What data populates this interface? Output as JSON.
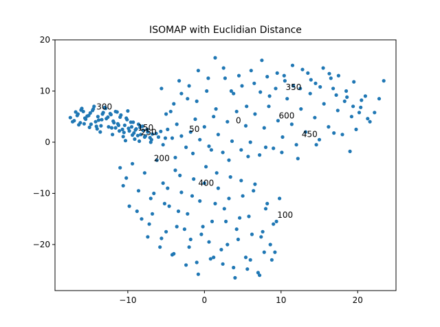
{
  "chart_data": {
    "type": "scatter",
    "title": "ISOMAP with Euclidian Distance",
    "xlabel": "",
    "ylabel": "",
    "xlim": [
      -19.5,
      25
    ],
    "ylim": [
      -29,
      20
    ],
    "xticks": [
      -10,
      0,
      10,
      20
    ],
    "xtick_labels": [
      "−10",
      "0",
      "10",
      "20"
    ],
    "yticks": [
      -20,
      -10,
      0,
      10,
      20
    ],
    "ytick_labels": [
      "−20",
      "−10",
      "0",
      "10",
      "20"
    ],
    "grid": false,
    "marker_color": "#1f77b4",
    "annotations": [
      {
        "text": "0",
        "x": 4.1,
        "y": 3.7
      },
      {
        "text": "50",
        "x": -2.0,
        "y": 2.0
      },
      {
        "text": "100",
        "x": 9.5,
        "y": -14.8
      },
      {
        "text": "150",
        "x": -8.7,
        "y": 2.3
      },
      {
        "text": "200",
        "x": -6.6,
        "y": -3.7
      },
      {
        "text": "250",
        "x": -8.3,
        "y": 1.4
      },
      {
        "text": "300",
        "x": -14.1,
        "y": 6.4
      },
      {
        "text": "350",
        "x": 10.6,
        "y": 10.2
      },
      {
        "text": "400",
        "x": -0.8,
        "y": -8.5
      },
      {
        "text": "450",
        "x": 12.7,
        "y": 1.0
      },
      {
        "text": "600",
        "x": 9.7,
        "y": 4.6
      }
    ],
    "series": [
      {
        "x": [
          -17.5,
          -17.0,
          -16.5,
          -16.2,
          -15.8,
          -15.5,
          -15.1,
          -14.8,
          -14.5,
          -14.2,
          -13.9,
          -13.5,
          -13.2,
          -12.8,
          -12.5,
          -12.2,
          -11.9,
          -11.6,
          -11.3,
          -11.0,
          -10.7,
          -10.4,
          -10.1,
          -9.8,
          -9.5,
          -9.2,
          -8.9,
          -8.6,
          -8.3,
          -8.0,
          -7.7,
          -7.4,
          -7.1,
          -6.8,
          -16.8,
          -16.0,
          -15.3,
          -14.6,
          -13.8,
          -13.0,
          -12.3,
          -11.6,
          -10.9,
          -10.2,
          -9.6,
          -9.0,
          -8.4,
          -7.8,
          -17.2,
          -16.4,
          -15.6,
          -14.9,
          -14.1,
          -13.3,
          -12.6,
          -11.8,
          -11.1,
          -10.5,
          -9.9,
          -9.3,
          -8.7,
          -8.1,
          -7.5,
          -6.9,
          -6.3,
          -5.7,
          -5.1,
          -15.0,
          -13.6,
          -12.0,
          -10.6,
          -9.1,
          -16.1,
          -14.4,
          -12.9,
          -11.4,
          -10.0,
          -8.5,
          -7.0,
          -15.7,
          -13.4,
          -11.2,
          -9.4,
          -16.6,
          -14.0,
          -12.1,
          -10.3
        ],
        "y": [
          4.8,
          4.2,
          5.5,
          3.8,
          6.0,
          4.5,
          5.2,
          3.5,
          6.5,
          4.0,
          5.0,
          3.2,
          5.8,
          4.6,
          3.0,
          5.4,
          4.1,
          2.8,
          3.6,
          4.9,
          2.5,
          3.3,
          4.4,
          2.2,
          3.0,
          1.8,
          2.6,
          3.5,
          1.5,
          2.3,
          1.2,
          2.0,
          0.9,
          1.6,
          5.9,
          6.6,
          5.1,
          6.2,
          4.3,
          6.8,
          5.6,
          6.0,
          5.3,
          4.7,
          3.9,
          2.4,
          2.9,
          1.0,
          4.0,
          3.4,
          4.7,
          5.7,
          3.1,
          5.5,
          4.9,
          3.8,
          2.2,
          1.9,
          2.7,
          3.9,
          1.3,
          3.1,
          2.5,
          0.5,
          1.7,
          2.1,
          0.8,
          2.9,
          2.0,
          1.5,
          1.1,
          0.6,
          6.3,
          7.0,
          6.6,
          5.9,
          6.1,
          0.2,
          0.0,
          3.6,
          4.4,
          3.3,
          1.4,
          5.2,
          2.6,
          2.8,
          0.3
        ]
      },
      {
        "x": [
          -6.0,
          -5.4,
          -4.8,
          -4.2,
          -3.6,
          -3.0,
          -2.4,
          -1.8,
          -1.2,
          -0.6,
          0.0,
          0.6,
          1.2,
          1.8,
          2.4,
          3.0,
          3.6,
          4.2,
          4.8,
          5.4,
          6.0,
          6.6,
          7.2,
          7.8,
          8.4,
          9.0,
          9.6,
          10.2,
          10.8,
          11.4,
          12.0,
          12.6,
          13.2,
          13.8,
          14.4,
          15.0,
          15.6,
          16.2,
          16.8,
          17.4,
          18.0,
          18.6,
          19.2,
          19.8,
          20.4,
          21.0,
          21.6,
          22.2,
          22.8,
          23.4,
          -5.0,
          -4.0,
          -3.0,
          -2.0,
          -1.0,
          0.5,
          1.5,
          2.5,
          3.5,
          4.5,
          5.5,
          6.5,
          7.5,
          8.5,
          9.5,
          10.5,
          11.5,
          12.5,
          13.5,
          14.5,
          15.5,
          16.5,
          17.5,
          18.5,
          19.5,
          20.5,
          -5.6,
          -4.4,
          -3.3,
          -2.2,
          -0.8,
          0.3,
          1.4,
          2.7,
          3.8,
          4.9,
          6.1,
          7.3,
          8.2,
          9.3,
          10.4,
          11.6,
          12.8,
          13.9,
          15.1,
          16.3,
          17.2,
          18.3,
          19.4,
          20.2,
          -3.8,
          -1.5,
          0.9,
          3.2,
          5.7,
          8.0,
          10.1,
          12.2,
          14.6,
          16.9,
          19.0,
          21.3
        ],
        "y": [
          1.0,
          -0.5,
          2.5,
          0.8,
          3.5,
          1.2,
          -1.0,
          2.0,
          4.5,
          0.5,
          3.0,
          -0.8,
          5.0,
          1.5,
          -2.0,
          4.0,
          0.2,
          6.0,
          -1.5,
          3.2,
          0.0,
          5.5,
          -2.5,
          2.8,
          7.0,
          -1.2,
          4.2,
          1.0,
          8.5,
          3.5,
          -0.5,
          6.5,
          2.0,
          9.5,
          4.8,
          0.5,
          7.5,
          3.0,
          10.5,
          6.2,
          1.5,
          8.8,
          5.0,
          2.5,
          6.8,
          9.0,
          4.0,
          5.8,
          8.5,
          12.0,
          5.5,
          7.5,
          9.5,
          11.0,
          8.0,
          12.5,
          6.5,
          14.5,
          10.0,
          13.0,
          7.0,
          11.5,
          16.0,
          9.0,
          13.5,
          12.0,
          15.0,
          10.5,
          13.5,
          11.5,
          14.5,
          12.5,
          13.0,
          10.0,
          11.8,
          8.2,
          10.5,
          6.0,
          12.0,
          8.5,
          14.0,
          10.0,
          16.5,
          12.5,
          9.5,
          11.0,
          14.0,
          9.8,
          12.8,
          10.5,
          13.0,
          11.0,
          14.2,
          12.2,
          10.8,
          13.4,
          9.2,
          8.0,
          7.0,
          5.8,
          -3.0,
          -2.2,
          -1.5,
          -3.5,
          -2.8,
          -1.0,
          -2.0,
          -3.2,
          -0.5,
          1.8,
          -1.8,
          4.6
        ]
      },
      {
        "x": [
          -11.0,
          -10.2,
          -9.4,
          -8.6,
          -7.8,
          -7.0,
          -6.2,
          -5.4,
          -4.6,
          -3.8,
          -3.0,
          -2.2,
          -1.4,
          -0.6,
          0.2,
          1.0,
          1.8,
          2.6,
          3.4,
          4.2,
          5.0,
          5.8,
          6.6,
          7.4,
          8.2,
          9.0,
          9.8,
          -9.8,
          -8.2,
          -6.6,
          -5.0,
          -3.4,
          -1.8,
          -0.2,
          1.4,
          3.0,
          4.6,
          6.2,
          7.8,
          9.4,
          -7.4,
          -5.8,
          -4.2,
          -2.6,
          -1.0,
          0.6,
          2.2,
          3.8,
          5.4,
          7.0,
          8.6,
          -6.8,
          -5.2,
          -3.6,
          -2.0,
          -0.4,
          1.2,
          2.8,
          4.4,
          6.0,
          7.6,
          9.2,
          -4.8,
          -3.2,
          -1.6,
          0.0,
          1.6,
          3.2,
          4.8,
          6.4,
          8.0,
          -10.6,
          -8.8,
          -7.2,
          -5.6,
          -4.0,
          -2.4,
          -0.8,
          0.8,
          2.4,
          4.0,
          5.6,
          7.2,
          8.8
        ],
        "y": [
          -5.0,
          -7.0,
          -4.2,
          -9.5,
          -6.0,
          -11.0,
          -3.5,
          -8.0,
          -12.5,
          -5.5,
          -9.8,
          -14.0,
          -7.2,
          -11.5,
          -4.8,
          -15.5,
          -9.0,
          -13.0,
          -6.8,
          -17.0,
          -10.5,
          -14.5,
          -8.2,
          -18.5,
          -12.0,
          -16.0,
          -11.0,
          -12.5,
          -15.0,
          -10.0,
          -17.5,
          -13.5,
          -19.0,
          -16.5,
          -12.0,
          -20.0,
          -14.8,
          -18.0,
          -21.5,
          -15.5,
          -18.5,
          -20.5,
          -22.0,
          -17.0,
          -23.5,
          -19.5,
          -21.0,
          -24.5,
          -22.5,
          -25.5,
          -20.0,
          -14.0,
          -12.0,
          -16.5,
          -20.5,
          -18.0,
          -22.5,
          -15.5,
          -19.0,
          -23.0,
          -17.5,
          -21.5,
          -9.0,
          -6.5,
          -10.5,
          -8.0,
          -6.0,
          -11.0,
          -7.5,
          -9.5,
          -13.0,
          -8.5,
          -13.5,
          -16.0,
          -18.8,
          -21.8,
          -24.0,
          -25.8,
          -22.8,
          -23.8,
          -26.5,
          -24.8,
          -26.0,
          -23.0
        ]
      }
    ]
  }
}
